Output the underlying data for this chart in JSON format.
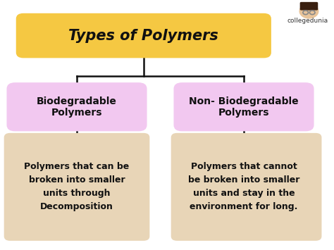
{
  "title": "Types of Polymers",
  "title_bg": "#F5C842",
  "title_color": "#111111",
  "bg_color": "#ffffff",
  "left_box_title": "Biodegradable\nPolymers",
  "right_box_title": "Non- Biodegradable\nPolymers",
  "left_box_bg": "#F2C8F0",
  "right_box_bg": "#F2C8F0",
  "left_desc_bg": "#E8D5B7",
  "right_desc_bg": "#E8D5B7",
  "left_desc": "Polymers that can be\nbroken into smaller\nunits through\nDecomposition",
  "right_desc": "Polymers that cannot\nbe broken into smaller\nunits and stay in the\nenvironment for long.",
  "line_color": "#111111",
  "font_color": "#111111",
  "watermark": "collegedunia",
  "fig_width": 4.74,
  "fig_height": 3.55,
  "dpi": 100
}
